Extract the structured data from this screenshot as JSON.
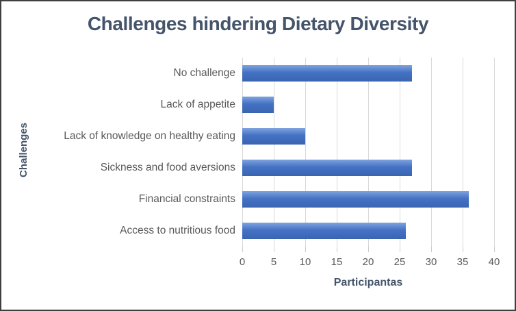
{
  "chart_data": {
    "type": "bar",
    "orientation": "horizontal",
    "title": "Challenges hindering Dietary Diversity",
    "xlabel": "Participantas",
    "ylabel": "Challenges",
    "categories": [
      "No challenge",
      "Lack of appetite",
      "Lack of knowledge on healthy eating",
      "Sickness and food aversions",
      "Financial constraints",
      "Access to nutritious food"
    ],
    "values": [
      27,
      5,
      10,
      27,
      36,
      26
    ],
    "xlim": [
      0,
      40
    ],
    "xticks": [
      0,
      5,
      10,
      15,
      20,
      25,
      30,
      35,
      40
    ],
    "grid": "vertical-only",
    "legend": "none",
    "colors": {
      "bar_fill": "#4472C4",
      "bar_gradient_top": "#7FA3DE",
      "bar_gradient_mid": "#4472C4",
      "bar_gradient_bottom": "#3A65B1",
      "gridline": "#D9D9D9",
      "tick": "#C9CDD3",
      "title_text": "#44546A",
      "axis_title_text": "#44546A",
      "tick_label_text": "#595959",
      "category_label_text": "#595959",
      "frame_border": "#3F3F3F",
      "background": "#FFFFFF"
    }
  }
}
